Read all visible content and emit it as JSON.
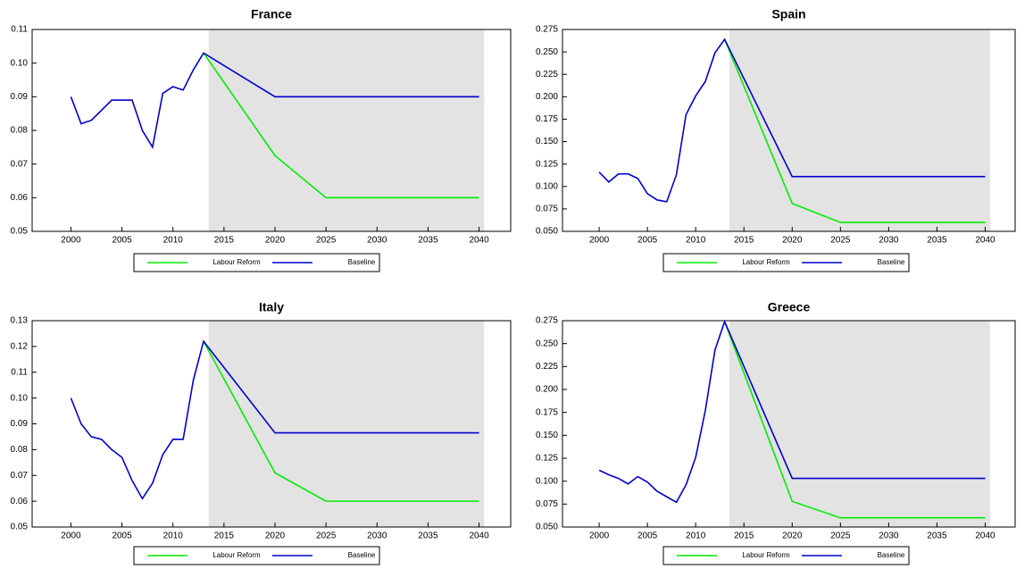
{
  "chart_data": [
    {
      "type": "line",
      "title": "France",
      "x": [
        2000,
        2001,
        2002,
        2003,
        2004,
        2005,
        2006,
        2007,
        2008,
        2009,
        2010,
        2011,
        2012,
        2013,
        2020,
        2025,
        2040
      ],
      "series": [
        {
          "name": "Labour Reform",
          "color": "#00ee00",
          "values": [
            null,
            null,
            null,
            null,
            null,
            null,
            null,
            null,
            null,
            null,
            null,
            null,
            null,
            0.103,
            0.0725,
            0.06,
            0.06
          ]
        },
        {
          "name": "Baseline",
          "color": "#0000cc",
          "values": [
            0.09,
            0.082,
            0.083,
            0.086,
            0.089,
            0.089,
            0.089,
            0.08,
            0.075,
            0.091,
            0.093,
            0.092,
            0.098,
            0.103,
            0.09,
            0.09,
            0.09
          ]
        }
      ],
      "xlim": [
        1996.2,
        2043.1
      ],
      "xticks": [
        2000,
        2005,
        2010,
        2015,
        2020,
        2025,
        2030,
        2035,
        2040
      ],
      "ylim": [
        0.05,
        0.11
      ],
      "yticks": [
        0.05,
        0.06,
        0.07,
        0.08,
        0.09,
        {
          "value": 0.1,
          "label": "0.10"
        },
        0.11
      ],
      "shaded_region": [
        2013.5,
        2040.5
      ],
      "shade_color": "#e3e3e3",
      "legend": "below"
    },
    {
      "type": "line",
      "title": "Spain",
      "x": [
        2000,
        2001,
        2002,
        2003,
        2004,
        2005,
        2006,
        2007,
        2008,
        2009,
        2010,
        2011,
        2012,
        2013,
        2020,
        2025,
        2040
      ],
      "series": [
        {
          "name": "Labour Reform",
          "color": "#00ee00",
          "values": [
            null,
            null,
            null,
            null,
            null,
            null,
            null,
            null,
            null,
            null,
            null,
            null,
            null,
            0.264,
            0.081,
            0.06,
            0.06
          ]
        },
        {
          "name": "Baseline",
          "color": "#0000cc",
          "values": [
            0.116,
            0.105,
            0.114,
            0.114,
            0.109,
            0.092,
            0.085,
            0.083,
            0.113,
            0.18,
            0.201,
            0.217,
            0.249,
            0.264,
            0.111,
            0.111,
            0.111
          ]
        }
      ],
      "xlim": [
        1996.2,
        2043.1
      ],
      "xticks": [
        2000,
        2005,
        2010,
        2015,
        2020,
        2025,
        2030,
        2035,
        2040
      ],
      "ylim": [
        0.05,
        0.275
      ],
      "yticks": [
        {
          "value": 0.05,
          "label": "0.050"
        },
        0.075,
        {
          "value": 0.1,
          "label": "0.100"
        },
        0.125,
        {
          "value": 0.15,
          "label": "0.150"
        },
        0.175,
        {
          "value": 0.2,
          "label": "0.200"
        },
        0.225,
        {
          "value": 0.25,
          "label": "0.250"
        },
        0.275
      ],
      "shaded_region": [
        2013.5,
        2040.5
      ],
      "shade_color": "#e3e3e3",
      "legend": "below"
    },
    {
      "type": "line",
      "title": "Italy",
      "x": [
        2000,
        2001,
        2002,
        2003,
        2004,
        2005,
        2006,
        2007,
        2008,
        2009,
        2010,
        2011,
        2012,
        2013,
        2020,
        2025,
        2040
      ],
      "series": [
        {
          "name": "Labour Reform",
          "color": "#00ee00",
          "values": [
            null,
            null,
            null,
            null,
            null,
            null,
            null,
            null,
            null,
            null,
            null,
            null,
            null,
            0.122,
            0.071,
            0.06,
            0.06
          ]
        },
        {
          "name": "Baseline",
          "color": "#0000cc",
          "values": [
            0.1,
            0.09,
            0.085,
            0.084,
            0.08,
            0.077,
            0.068,
            0.061,
            0.067,
            0.078,
            0.084,
            0.084,
            0.107,
            0.122,
            0.0865,
            0.0865,
            0.0865
          ]
        }
      ],
      "xlim": [
        1996.2,
        2043.1
      ],
      "xticks": [
        2000,
        2005,
        2010,
        2015,
        2020,
        2025,
        2030,
        2035,
        2040
      ],
      "ylim": [
        0.05,
        0.13
      ],
      "yticks": [
        0.05,
        0.06,
        0.07,
        0.08,
        0.09,
        {
          "value": 0.1,
          "label": "0.10"
        },
        0.11,
        0.12,
        0.13
      ],
      "shaded_region": [
        2013.5,
        2040.5
      ],
      "shade_color": "#e3e3e3",
      "legend": "below"
    },
    {
      "type": "line",
      "title": "Greece",
      "x": [
        2000,
        2001,
        2002,
        2003,
        2004,
        2005,
        2006,
        2007,
        2008,
        2009,
        2010,
        2011,
        2012,
        2013,
        2020,
        2025,
        2040
      ],
      "series": [
        {
          "name": "Labour Reform",
          "color": "#00ee00",
          "values": [
            null,
            null,
            null,
            null,
            null,
            null,
            null,
            null,
            null,
            null,
            null,
            null,
            null,
            0.274,
            0.078,
            0.06,
            0.06
          ]
        },
        {
          "name": "Baseline",
          "color": "#0000cc",
          "values": [
            0.112,
            0.107,
            0.103,
            0.097,
            0.105,
            0.099,
            0.089,
            0.083,
            0.077,
            0.096,
            0.126,
            0.177,
            0.243,
            0.274,
            0.103,
            0.103,
            0.103
          ]
        }
      ],
      "xlim": [
        1996.2,
        2043.1
      ],
      "xticks": [
        2000,
        2005,
        2010,
        2015,
        2020,
        2025,
        2030,
        2035,
        2040
      ],
      "ylim": [
        0.05,
        0.275
      ],
      "yticks": [
        {
          "value": 0.05,
          "label": "0.050"
        },
        0.075,
        {
          "value": 0.1,
          "label": "0.100"
        },
        0.125,
        {
          "value": 0.15,
          "label": "0.150"
        },
        0.175,
        {
          "value": 0.2,
          "label": "0.200"
        },
        0.225,
        {
          "value": 0.25,
          "label": "0.250"
        },
        0.275
      ],
      "shaded_region": [
        2013.5,
        2040.5
      ],
      "shade_color": "#e3e3e3",
      "legend": "below"
    }
  ]
}
